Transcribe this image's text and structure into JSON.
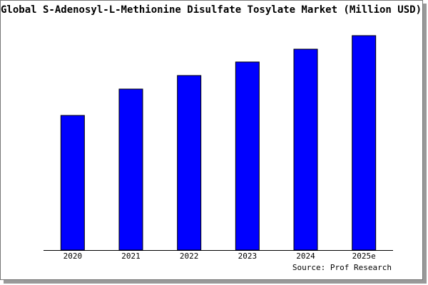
{
  "chart_data": {
    "type": "bar",
    "title": "Global S-Adenosyl-L-Methionine Disulfate Tosylate Market (Million USD)",
    "categories": [
      "2020",
      "2021",
      "2022",
      "2023",
      "2024",
      "2025e"
    ],
    "values": [
      189,
      226,
      245,
      264,
      282,
      301
    ],
    "color": "#0000ff",
    "source": "Source: Prof Research"
  }
}
